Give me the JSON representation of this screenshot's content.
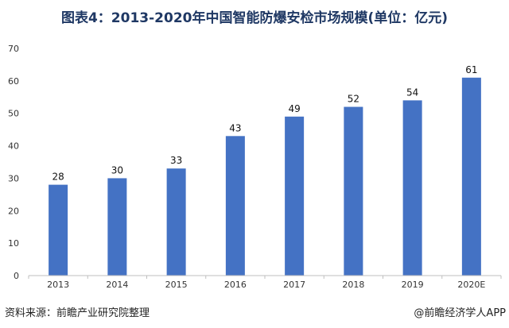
{
  "chart_data": {
    "type": "bar",
    "title": "图表4：2013-2020年中国智能防爆安检市场规模(单位：亿元)",
    "xlabel": "",
    "ylabel": "",
    "categories": [
      "2013",
      "2014",
      "2015",
      "2016",
      "2017",
      "2018",
      "2019",
      "2020E"
    ],
    "values": [
      28,
      30,
      33,
      43,
      49,
      52,
      54,
      61
    ],
    "data_labels": [
      "28",
      "30",
      "33",
      "43",
      "49",
      "52",
      "54",
      "61"
    ],
    "ylim": [
      0,
      70
    ],
    "yticks": [
      "0",
      "10",
      "20",
      "30",
      "40",
      "50",
      "60",
      "70"
    ],
    "grid": false,
    "bar_color": "#4472c4"
  },
  "footer": {
    "source": "资料来源：前瞻产业研究院整理",
    "credit": "@前瞻经济学人APP"
  }
}
